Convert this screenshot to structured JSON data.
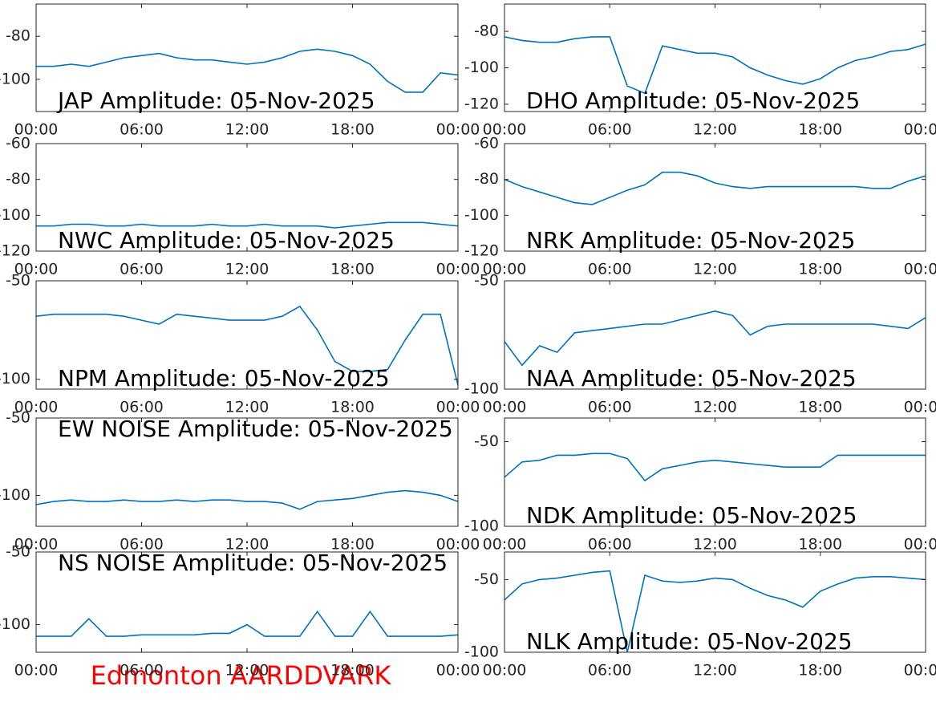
{
  "suptitle": "Edmonton AARDDVARK",
  "chart_data": [
    {
      "type": "line",
      "title": "JAP Amplitude: 05-Nov-2025",
      "title_corner": "lower left",
      "color": "#0072bd",
      "x": [
        0,
        1,
        2,
        3,
        4,
        5,
        6,
        7,
        8,
        9,
        10,
        11,
        12,
        13,
        14,
        15,
        16,
        17,
        18,
        19,
        20,
        21,
        22,
        23,
        24
      ],
      "values": [
        -94,
        -94,
        -93,
        -94,
        -92,
        -90,
        -89,
        -88,
        -90,
        -91,
        -91,
        -92,
        -93,
        -92,
        -90,
        -87,
        -86,
        -87,
        -89,
        -93,
        -101,
        -106,
        -106,
        -97,
        -98
      ],
      "xlim": [
        0,
        24
      ],
      "xticks": [
        {
          "value": 0,
          "label": "00:00"
        },
        {
          "value": 6,
          "label": "06:00"
        },
        {
          "value": 12,
          "label": "12:00"
        },
        {
          "value": 18,
          "label": "18:00"
        },
        {
          "value": 24,
          "label": "00:00"
        }
      ],
      "ylim": [
        -115,
        -65
      ],
      "yticks": [
        -80,
        -100
      ]
    },
    {
      "type": "line",
      "title": "DHO Amplitude: 05-Nov-2025",
      "title_corner": "lower left",
      "color": "#0072bd",
      "x": [
        0,
        1,
        2,
        3,
        4,
        5,
        6,
        7,
        8,
        9,
        10,
        11,
        12,
        13,
        14,
        15,
        16,
        17,
        18,
        19,
        20,
        21,
        22,
        23,
        24
      ],
      "values": [
        -83,
        -85,
        -86,
        -86,
        -84,
        -83,
        -83,
        -110,
        -114,
        -88,
        -90,
        -92,
        -92,
        -94,
        -100,
        -104,
        -107,
        -109,
        -106,
        -100,
        -96,
        -94,
        -91,
        -90,
        -87
      ],
      "xlim": [
        0,
        24
      ],
      "xticks": [
        {
          "value": 0,
          "label": "00:00"
        },
        {
          "value": 6,
          "label": "06:00"
        },
        {
          "value": 12,
          "label": "12:00"
        },
        {
          "value": 18,
          "label": "18:00"
        },
        {
          "value": 24,
          "label": "00:00"
        }
      ],
      "ylim": [
        -124,
        -65
      ],
      "yticks": [
        -80,
        -100,
        -120
      ]
    },
    {
      "type": "line",
      "title": "NWC Amplitude: 05-Nov-2025",
      "title_corner": "lower left",
      "color": "#0072bd",
      "x": [
        0,
        1,
        2,
        3,
        4,
        5,
        6,
        7,
        8,
        9,
        10,
        11,
        12,
        13,
        14,
        15,
        16,
        17,
        18,
        19,
        20,
        21,
        22,
        23,
        24
      ],
      "values": [
        -106,
        -106,
        -105,
        -105,
        -106,
        -106,
        -105,
        -106,
        -106,
        -106,
        -105,
        -106,
        -106,
        -105,
        -106,
        -106,
        -106,
        -107,
        -106,
        -105,
        -104,
        -104,
        -104,
        -105,
        -106
      ],
      "xlim": [
        0,
        24
      ],
      "xticks": [
        {
          "value": 0,
          "label": "00:00"
        },
        {
          "value": 6,
          "label": "06:00"
        },
        {
          "value": 12,
          "label": "12:00"
        },
        {
          "value": 18,
          "label": "18:00"
        },
        {
          "value": 24,
          "label": "00:00"
        }
      ],
      "ylim": [
        -120,
        -60
      ],
      "yticks": [
        -60,
        -80,
        -100,
        -120
      ]
    },
    {
      "type": "line",
      "title": "NRK Amplitude: 05-Nov-2025",
      "title_corner": "lower left",
      "color": "#0072bd",
      "x": [
        0,
        1,
        2,
        3,
        4,
        5,
        6,
        7,
        8,
        9,
        10,
        11,
        12,
        13,
        14,
        15,
        16,
        17,
        18,
        19,
        20,
        21,
        22,
        23,
        24
      ],
      "values": [
        -80,
        -84,
        -87,
        -90,
        -93,
        -94,
        -90,
        -86,
        -83,
        -76,
        -76,
        -78,
        -82,
        -84,
        -85,
        -84,
        -84,
        -84,
        -84,
        -84,
        -84,
        -85,
        -85,
        -81,
        -78
      ],
      "xlim": [
        0,
        24
      ],
      "xticks": [
        {
          "value": 0,
          "label": "00:00"
        },
        {
          "value": 6,
          "label": "06:00"
        },
        {
          "value": 12,
          "label": "12:00"
        },
        {
          "value": 18,
          "label": "18:00"
        },
        {
          "value": 24,
          "label": "00:00"
        }
      ],
      "ylim": [
        -120,
        -60
      ],
      "yticks": [
        -60,
        -80,
        -100,
        -120
      ]
    },
    {
      "type": "line",
      "title": "NPM Amplitude: 05-Nov-2025",
      "title_corner": "lower left",
      "color": "#0072bd",
      "x": [
        0,
        1,
        2,
        3,
        4,
        5,
        6,
        7,
        8,
        9,
        10,
        11,
        12,
        13,
        14,
        15,
        16,
        17,
        18,
        19,
        20,
        21,
        22,
        23,
        24
      ],
      "values": [
        -68,
        -67,
        -67,
        -67,
        -67,
        -68,
        -70,
        -72,
        -67,
        -68,
        -69,
        -70,
        -70,
        -70,
        -68,
        -63,
        -75,
        -91,
        -96,
        -96,
        -95,
        -80,
        -67,
        -67,
        -103
      ],
      "xlim": [
        0,
        24
      ],
      "xticks": [
        {
          "value": 0,
          "label": "00:00"
        },
        {
          "value": 6,
          "label": "06:00"
        },
        {
          "value": 12,
          "label": "12:00"
        },
        {
          "value": 18,
          "label": "18:00"
        },
        {
          "value": 24,
          "label": "00:00"
        }
      ],
      "ylim": [
        -105,
        -50
      ],
      "yticks": [
        -50,
        -100
      ]
    },
    {
      "type": "line",
      "title": "NAA Amplitude: 05-Nov-2025",
      "title_corner": "lower left",
      "color": "#0072bd",
      "x": [
        0,
        1,
        2,
        3,
        4,
        5,
        6,
        7,
        8,
        9,
        10,
        11,
        12,
        13,
        14,
        15,
        16,
        17,
        18,
        19,
        20,
        21,
        22,
        23,
        24
      ],
      "values": [
        -78,
        -89,
        -80,
        -83,
        -74,
        -73,
        -72,
        -71,
        -70,
        -70,
        -68,
        -66,
        -64,
        -66,
        -75,
        -71,
        -70,
        -70,
        -70,
        -70,
        -70,
        -70,
        -71,
        -72,
        -67
      ],
      "xlim": [
        0,
        24
      ],
      "xticks": [
        {
          "value": 0,
          "label": "00:00"
        },
        {
          "value": 6,
          "label": "06:00"
        },
        {
          "value": 12,
          "label": "12:00"
        },
        {
          "value": 18,
          "label": "18:00"
        },
        {
          "value": 24,
          "label": "00:00"
        }
      ],
      "ylim": [
        -100,
        -50
      ],
      "yticks": [
        -50,
        -100
      ]
    },
    {
      "type": "line",
      "title": "EW NOISE Amplitude: 05-Nov-2025",
      "title_corner": "upper left",
      "color": "#0072bd",
      "x": [
        0,
        1,
        2,
        3,
        4,
        5,
        6,
        7,
        8,
        9,
        10,
        11,
        12,
        13,
        14,
        15,
        16,
        17,
        18,
        19,
        20,
        21,
        22,
        23,
        24
      ],
      "values": [
        -106,
        -104,
        -103,
        -104,
        -104,
        -103,
        -104,
        -104,
        -103,
        -104,
        -103,
        -103,
        -104,
        -104,
        -105,
        -109,
        -104,
        -103,
        -102,
        -100,
        -98,
        -97,
        -98,
        -100,
        -104
      ],
      "xlim": [
        0,
        24
      ],
      "xticks": [
        {
          "value": 0,
          "label": "00:00"
        },
        {
          "value": 6,
          "label": "06:00"
        },
        {
          "value": 12,
          "label": "12:00"
        },
        {
          "value": 18,
          "label": "18:00"
        },
        {
          "value": 24,
          "label": "00:00"
        }
      ],
      "ylim": [
        -120,
        -50
      ],
      "yticks": [
        -50,
        -100
      ]
    },
    {
      "type": "line",
      "title": "NDK Amplitude: 05-Nov-2025",
      "title_corner": "lower left",
      "color": "#0072bd",
      "x": [
        0,
        1,
        2,
        3,
        4,
        5,
        6,
        7,
        8,
        9,
        10,
        11,
        12,
        13,
        14,
        15,
        16,
        17,
        18,
        19,
        20,
        21,
        22,
        23,
        24
      ],
      "values": [
        -71,
        -62,
        -61,
        -58,
        -58,
        -57,
        -57,
        -60,
        -73,
        -66,
        -64,
        -62,
        -61,
        -62,
        -63,
        -64,
        -65,
        -65,
        -65,
        -58,
        -58,
        -58,
        -58,
        -58,
        -58
      ],
      "xlim": [
        0,
        24
      ],
      "xticks": [
        {
          "value": 0,
          "label": "00:00"
        },
        {
          "value": 6,
          "label": "06:00"
        },
        {
          "value": 12,
          "label": "12:00"
        },
        {
          "value": 18,
          "label": "18:00"
        },
        {
          "value": 24,
          "label": "00:00"
        }
      ],
      "ylim": [
        -100,
        -36
      ],
      "yticks": [
        -50,
        -100
      ]
    },
    {
      "type": "line",
      "title": "NS NOISE Amplitude: 05-Nov-2025",
      "title_corner": "upper left",
      "color": "#0072bd",
      "x": [
        0,
        1,
        2,
        3,
        4,
        5,
        6,
        7,
        8,
        9,
        10,
        11,
        12,
        13,
        14,
        15,
        16,
        17,
        18,
        19,
        20,
        21,
        22,
        23,
        24
      ],
      "values": [
        -108,
        -108,
        -108,
        -96,
        -108,
        -108,
        -107,
        -107,
        -107,
        -107,
        -106,
        -106,
        -100,
        -108,
        -108,
        -108,
        -91,
        -108,
        -108,
        -91,
        -108,
        -108,
        -108,
        -108,
        -107
      ],
      "xlim": [
        0,
        24
      ],
      "xticks": [
        {
          "value": 0,
          "label": "00:00"
        },
        {
          "value": 6,
          "label": "06:00"
        },
        {
          "value": 12,
          "label": "12:00"
        },
        {
          "value": 18,
          "label": "18:00"
        },
        {
          "value": 24,
          "label": "00:00"
        }
      ],
      "ylim": [
        -119,
        -50
      ],
      "yticks": [
        -50,
        -100
      ]
    },
    {
      "type": "line",
      "title": "NLK Amplitude: 05-Nov-2025",
      "title_corner": "lower left",
      "color": "#0072bd",
      "x": [
        0,
        1,
        2,
        3,
        4,
        5,
        6,
        7,
        8,
        9,
        10,
        11,
        12,
        13,
        14,
        15,
        16,
        17,
        18,
        19,
        20,
        21,
        22,
        23,
        24
      ],
      "values": [
        -64,
        -53,
        -50,
        -49,
        -47,
        -45,
        -44,
        -100,
        -47,
        -51,
        -52,
        -51,
        -49,
        -50,
        -56,
        -61,
        -64,
        -69,
        -58,
        -53,
        -49,
        -48,
        -48,
        -49,
        -50
      ],
      "xlim": [
        0,
        24
      ],
      "xticks": [
        {
          "value": 0,
          "label": "00:00"
        },
        {
          "value": 6,
          "label": "06:00"
        },
        {
          "value": 12,
          "label": "12:00"
        },
        {
          "value": 18,
          "label": "18:00"
        },
        {
          "value": 24,
          "label": "00:00"
        }
      ],
      "ylim": [
        -100,
        -31
      ],
      "yticks": [
        -50,
        -100
      ]
    }
  ]
}
